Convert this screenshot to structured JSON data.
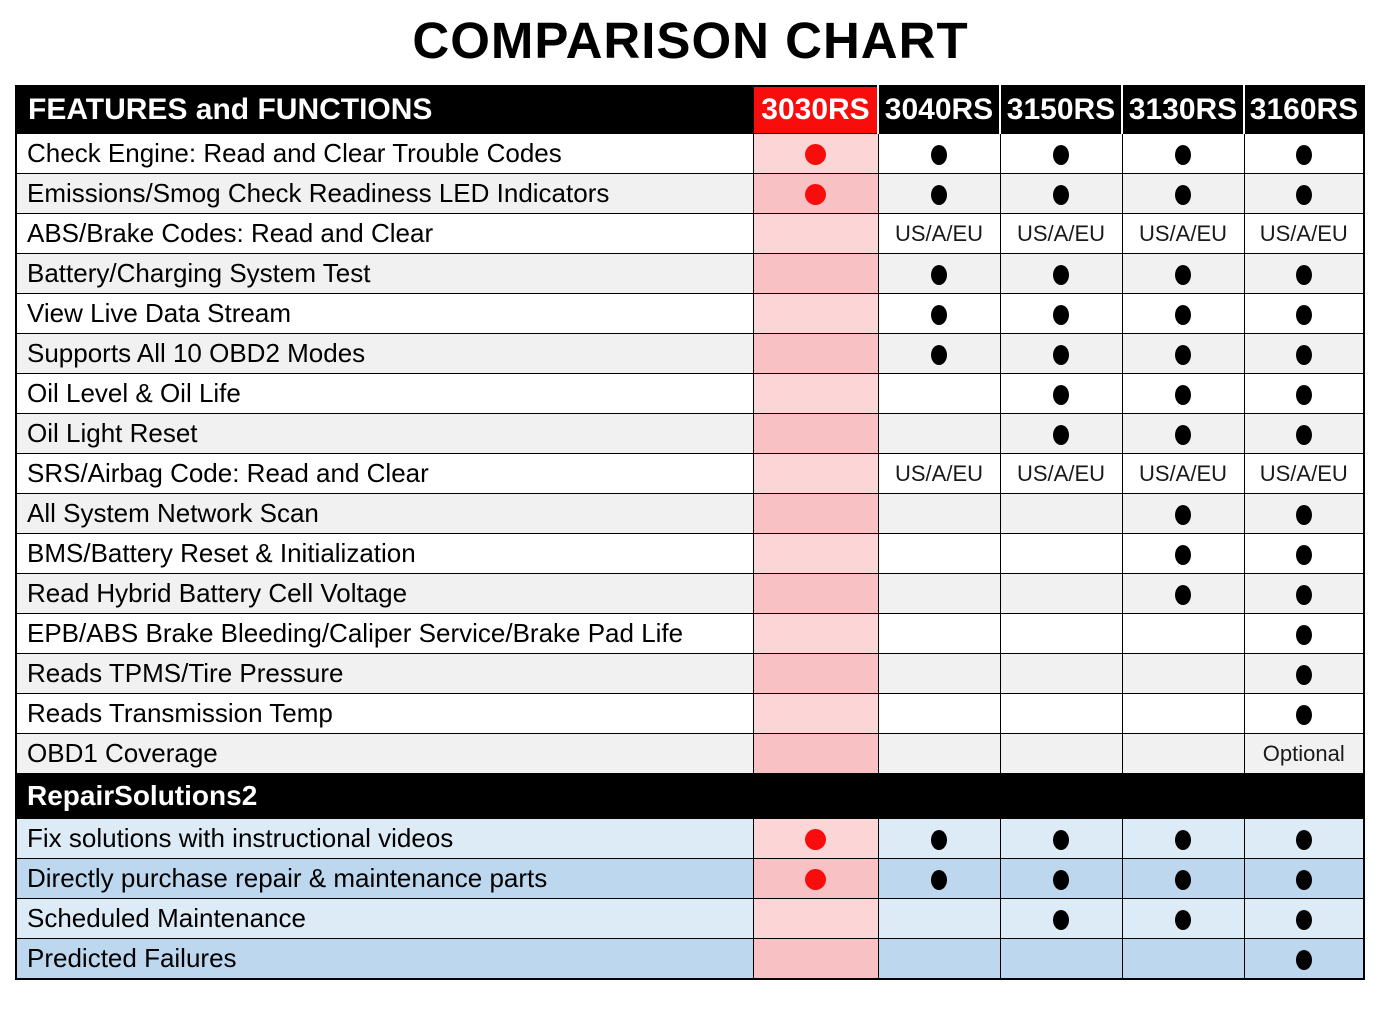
{
  "chart_data": {
    "type": "table",
    "title": "COMPARISON CHART",
    "columns": [
      "FEATURES and FUNCTIONS",
      "3030RS",
      "3040RS",
      "3150RS",
      "3130RS",
      "3160RS"
    ],
    "highlighted_column": "3030RS",
    "sections": [
      {
        "header": null,
        "rows": [
          {
            "feature": "Check Engine: Read and Clear Trouble Codes",
            "values": [
              "red-dot",
              "dot",
              "dot",
              "dot",
              "dot"
            ]
          },
          {
            "feature": "Emissions/Smog Check Readiness LED Indicators",
            "values": [
              "red-dot",
              "dot",
              "dot",
              "dot",
              "dot"
            ]
          },
          {
            "feature": "ABS/Brake Codes: Read and Clear",
            "values": [
              "",
              "US/A/EU",
              "US/A/EU",
              "US/A/EU",
              "US/A/EU"
            ]
          },
          {
            "feature": "Battery/Charging System Test",
            "values": [
              "",
              "dot",
              "dot",
              "dot",
              "dot"
            ]
          },
          {
            "feature": "View Live Data Stream",
            "values": [
              "",
              "dot",
              "dot",
              "dot",
              "dot"
            ]
          },
          {
            "feature": "Supports All 10 OBD2 Modes",
            "values": [
              "",
              "dot",
              "dot",
              "dot",
              "dot"
            ]
          },
          {
            "feature": "Oil Level & Oil Life",
            "values": [
              "",
              "",
              "dot",
              "dot",
              "dot"
            ]
          },
          {
            "feature": "Oil Light Reset",
            "values": [
              "",
              "",
              "dot",
              "dot",
              "dot"
            ]
          },
          {
            "feature": "SRS/Airbag Code: Read and Clear",
            "values": [
              "",
              "US/A/EU",
              "US/A/EU",
              "US/A/EU",
              "US/A/EU"
            ]
          },
          {
            "feature": "All System Network Scan",
            "values": [
              "",
              "",
              "",
              "dot",
              "dot"
            ]
          },
          {
            "feature": "BMS/Battery Reset & Initialization",
            "values": [
              "",
              "",
              "",
              "dot",
              "dot"
            ]
          },
          {
            "feature": "Read Hybrid Battery Cell Voltage",
            "values": [
              "",
              "",
              "",
              "dot",
              "dot"
            ]
          },
          {
            "feature": "EPB/ABS Brake Bleeding/Caliper Service/Brake Pad Life",
            "values": [
              "",
              "",
              "",
              "",
              "dot"
            ]
          },
          {
            "feature": "Reads TPMS/Tire Pressure",
            "values": [
              "",
              "",
              "",
              "",
              "dot"
            ]
          },
          {
            "feature": "Reads Transmission Temp",
            "values": [
              "",
              "",
              "",
              "",
              "dot"
            ]
          },
          {
            "feature": "OBD1 Coverage",
            "values": [
              "",
              "",
              "",
              "",
              "Optional"
            ]
          }
        ]
      },
      {
        "header": "RepairSolutions2",
        "rows": [
          {
            "feature": "Fix solutions with instructional videos",
            "values": [
              "red-dot",
              "dot",
              "dot",
              "dot",
              "dot"
            ]
          },
          {
            "feature": "Directly purchase repair & maintenance parts",
            "values": [
              "red-dot",
              "dot",
              "dot",
              "dot",
              "dot"
            ]
          },
          {
            "feature": "Scheduled Maintenance",
            "values": [
              "",
              "",
              "dot",
              "dot",
              "dot"
            ]
          },
          {
            "feature": "Predicted Failures",
            "values": [
              "",
              "",
              "",
              "",
              "dot"
            ]
          }
        ]
      }
    ],
    "colors": {
      "header_black": "#000000",
      "highlight_red": "#f90c0c",
      "pink_light": "#fcd6d6",
      "pink_dark": "#f8c2c5",
      "row_white": "#ffffff",
      "row_gray": "#f1f1f1",
      "blue_light": "#ddebf7",
      "blue_dark": "#bdd7ee"
    }
  }
}
